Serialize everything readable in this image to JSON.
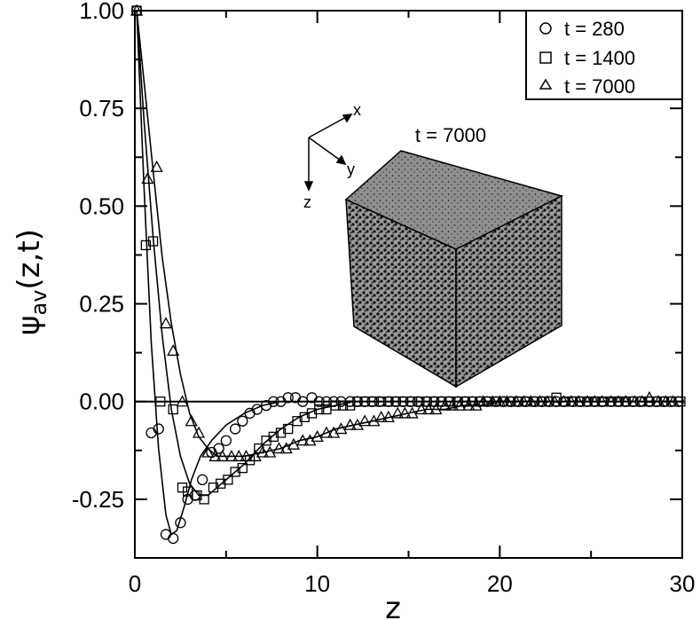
{
  "chart_data": {
    "type": "scatter",
    "xlabel": "z",
    "ylabel_main": "ψ",
    "ylabel_sub": "av",
    "ylabel_tail": "(z,t)",
    "xlim": [
      0,
      30
    ],
    "ylim": [
      -0.4,
      1.0
    ],
    "xticks": [
      0,
      10,
      20,
      30
    ],
    "xtick_labels": [
      "0",
      "10",
      "20",
      "30"
    ],
    "yticks": [
      1.0,
      0.75,
      0.5,
      0.25,
      0.0,
      -0.25
    ],
    "ytick_labels": [
      "1.00",
      "0.75",
      "0.50",
      "0.25",
      "0.00",
      "-0.25"
    ],
    "legend_position": "top-right",
    "series": [
      {
        "name": "t = 280",
        "marker": "circle",
        "points": [
          [
            0.1,
            1.0
          ],
          [
            0.9,
            -0.08
          ],
          [
            1.3,
            -0.07
          ],
          [
            1.7,
            -0.34
          ],
          [
            2.1,
            -0.35
          ],
          [
            2.5,
            -0.31
          ],
          [
            2.9,
            -0.25
          ],
          [
            3.3,
            -0.24
          ],
          [
            3.7,
            -0.2
          ],
          [
            4.2,
            -0.13
          ],
          [
            4.6,
            -0.12
          ],
          [
            5.0,
            -0.1
          ],
          [
            5.5,
            -0.07
          ],
          [
            5.9,
            -0.05
          ],
          [
            6.3,
            -0.03
          ],
          [
            6.7,
            -0.02
          ],
          [
            7.2,
            -0.01
          ],
          [
            7.6,
            0.0
          ],
          [
            8.0,
            0.0
          ],
          [
            8.4,
            0.01
          ],
          [
            8.8,
            0.01
          ],
          [
            9.2,
            0.0
          ],
          [
            9.7,
            0.01
          ],
          [
            10.1,
            0.0
          ],
          [
            10.5,
            0.0
          ],
          [
            10.9,
            0.0
          ],
          [
            11.3,
            0.0
          ],
          [
            11.8,
            0.0
          ],
          [
            12.2,
            0.0
          ],
          [
            12.6,
            0.0
          ],
          [
            13.0,
            0.0
          ],
          [
            13.4,
            0.0
          ],
          [
            13.9,
            0.0
          ],
          [
            14.3,
            0.0
          ],
          [
            14.7,
            0.0
          ],
          [
            15.1,
            0.0
          ],
          [
            15.5,
            0.0
          ],
          [
            16.0,
            0.0
          ],
          [
            16.4,
            0.0
          ],
          [
            16.8,
            0.0
          ],
          [
            17.2,
            0.0
          ],
          [
            17.7,
            0.0
          ],
          [
            18.1,
            0.0
          ],
          [
            18.5,
            0.0
          ],
          [
            18.9,
            0.0
          ],
          [
            19.3,
            0.0
          ],
          [
            19.8,
            0.0
          ],
          [
            20.2,
            0.0
          ],
          [
            20.6,
            0.0
          ],
          [
            21.0,
            0.0
          ],
          [
            21.4,
            0.0
          ],
          [
            21.9,
            0.0
          ],
          [
            22.3,
            0.0
          ],
          [
            22.7,
            0.0
          ],
          [
            23.1,
            0.0
          ],
          [
            23.5,
            0.0
          ],
          [
            24.0,
            0.0
          ],
          [
            24.4,
            0.0
          ],
          [
            24.8,
            0.0
          ],
          [
            25.2,
            0.0
          ],
          [
            25.6,
            0.0
          ],
          [
            26.1,
            0.0
          ],
          [
            26.5,
            0.0
          ],
          [
            26.9,
            0.0
          ],
          [
            27.3,
            0.0
          ],
          [
            27.7,
            0.0
          ],
          [
            28.2,
            0.0
          ],
          [
            28.6,
            0.0
          ],
          [
            29.0,
            0.0
          ],
          [
            29.4,
            0.0
          ],
          [
            29.8,
            0.0
          ]
        ]
      },
      {
        "name": "t = 1400",
        "marker": "square",
        "points": [
          [
            0.1,
            1.0
          ],
          [
            0.6,
            0.4
          ],
          [
            1.0,
            0.41
          ],
          [
            1.4,
            0.0
          ],
          [
            2.1,
            -0.02
          ],
          [
            2.6,
            -0.22
          ],
          [
            2.9,
            -0.23
          ],
          [
            3.4,
            -0.24
          ],
          [
            3.8,
            -0.25
          ],
          [
            4.3,
            -0.22
          ],
          [
            4.7,
            -0.21
          ],
          [
            5.1,
            -0.2
          ],
          [
            5.5,
            -0.18
          ],
          [
            5.9,
            -0.17
          ],
          [
            6.3,
            -0.15
          ],
          [
            6.8,
            -0.12
          ],
          [
            7.2,
            -0.1
          ],
          [
            7.6,
            -0.09
          ],
          [
            8.0,
            -0.08
          ],
          [
            8.4,
            -0.07
          ],
          [
            8.9,
            -0.05
          ],
          [
            9.3,
            -0.04
          ],
          [
            9.7,
            -0.03
          ],
          [
            10.1,
            -0.02
          ],
          [
            10.5,
            -0.02
          ],
          [
            11.0,
            -0.01
          ],
          [
            11.4,
            -0.01
          ],
          [
            11.8,
            -0.01
          ],
          [
            12.2,
            0.0
          ],
          [
            12.6,
            0.0
          ],
          [
            13.1,
            0.0
          ],
          [
            13.5,
            0.0
          ],
          [
            13.9,
            0.0
          ],
          [
            14.3,
            0.0
          ],
          [
            14.7,
            0.0
          ],
          [
            15.2,
            0.0
          ],
          [
            15.6,
            0.0
          ],
          [
            16.0,
            0.0
          ],
          [
            16.4,
            0.0
          ],
          [
            16.8,
            0.0
          ],
          [
            17.3,
            0.0
          ],
          [
            17.7,
            0.0
          ],
          [
            18.1,
            0.0
          ],
          [
            18.5,
            0.0
          ],
          [
            18.9,
            0.0
          ],
          [
            19.4,
            0.0
          ],
          [
            19.8,
            0.0
          ],
          [
            20.2,
            0.0
          ],
          [
            20.6,
            0.0
          ],
          [
            21.0,
            0.0
          ],
          [
            21.5,
            0.0
          ],
          [
            21.9,
            0.0
          ],
          [
            22.3,
            0.0
          ],
          [
            22.7,
            0.0
          ],
          [
            23.1,
            0.01
          ],
          [
            23.6,
            0.0
          ],
          [
            24.0,
            0.0
          ],
          [
            24.4,
            0.0
          ],
          [
            24.8,
            0.0
          ],
          [
            25.2,
            0.0
          ],
          [
            25.7,
            0.0
          ],
          [
            26.1,
            0.0
          ],
          [
            26.5,
            0.0
          ],
          [
            26.9,
            0.0
          ],
          [
            27.3,
            0.0
          ],
          [
            27.8,
            0.0
          ],
          [
            28.2,
            0.0
          ],
          [
            28.6,
            0.0
          ],
          [
            29.0,
            0.0
          ],
          [
            29.4,
            0.0
          ],
          [
            29.9,
            0.0
          ]
        ]
      },
      {
        "name": "t = 7000",
        "marker": "triangle",
        "points": [
          [
            0.1,
            1.0
          ],
          [
            0.7,
            0.57
          ],
          [
            1.2,
            0.6
          ],
          [
            1.7,
            0.2
          ],
          [
            2.1,
            0.13
          ],
          [
            2.6,
            0.0
          ],
          [
            3.1,
            -0.05
          ],
          [
            3.5,
            -0.08
          ],
          [
            4.0,
            -0.13
          ],
          [
            4.4,
            -0.14
          ],
          [
            4.8,
            -0.14
          ],
          [
            5.3,
            -0.14
          ],
          [
            5.7,
            -0.14
          ],
          [
            6.1,
            -0.14
          ],
          [
            6.6,
            -0.14
          ],
          [
            7.0,
            -0.13
          ],
          [
            7.4,
            -0.13
          ],
          [
            7.9,
            -0.12
          ],
          [
            8.3,
            -0.12
          ],
          [
            8.7,
            -0.11
          ],
          [
            9.2,
            -0.1
          ],
          [
            9.6,
            -0.1
          ],
          [
            10.0,
            -0.09
          ],
          [
            10.5,
            -0.08
          ],
          [
            10.9,
            -0.08
          ],
          [
            11.3,
            -0.07
          ],
          [
            11.8,
            -0.06
          ],
          [
            12.2,
            -0.06
          ],
          [
            12.6,
            -0.05
          ],
          [
            13.1,
            -0.05
          ],
          [
            13.5,
            -0.04
          ],
          [
            13.9,
            -0.04
          ],
          [
            14.4,
            -0.03
          ],
          [
            14.8,
            -0.03
          ],
          [
            15.2,
            -0.03
          ],
          [
            15.7,
            -0.02
          ],
          [
            16.1,
            -0.02
          ],
          [
            16.5,
            -0.02
          ],
          [
            17.0,
            -0.01
          ],
          [
            17.4,
            -0.01
          ],
          [
            17.8,
            -0.01
          ],
          [
            18.3,
            -0.01
          ],
          [
            18.7,
            -0.01
          ],
          [
            19.1,
            0.0
          ],
          [
            19.6,
            0.0
          ],
          [
            20.0,
            0.0
          ],
          [
            20.4,
            0.0
          ],
          [
            20.9,
            0.0
          ],
          [
            21.3,
            0.0
          ],
          [
            21.7,
            0.0
          ],
          [
            22.2,
            0.0
          ],
          [
            22.6,
            0.0
          ],
          [
            23.0,
            0.0
          ],
          [
            23.5,
            0.0
          ],
          [
            23.9,
            0.0
          ],
          [
            24.3,
            0.0
          ],
          [
            24.8,
            0.0
          ],
          [
            25.2,
            0.0
          ],
          [
            25.6,
            0.0
          ],
          [
            26.1,
            0.0
          ],
          [
            26.5,
            0.0
          ],
          [
            26.9,
            0.0
          ],
          [
            27.4,
            0.0
          ],
          [
            27.8,
            0.0
          ],
          [
            28.2,
            0.01
          ],
          [
            28.7,
            0.0
          ],
          [
            29.1,
            0.0
          ],
          [
            29.5,
            0.0
          ]
        ]
      }
    ],
    "fit_curves": [
      {
        "for": "t = 280",
        "points": [
          [
            0.1,
            1.0
          ],
          [
            0.5,
            0.55
          ],
          [
            0.9,
            0.15
          ],
          [
            1.3,
            -0.12
          ],
          [
            1.7,
            -0.29
          ],
          [
            2.0,
            -0.34
          ],
          [
            2.3,
            -0.33
          ],
          [
            2.7,
            -0.27
          ],
          [
            3.1,
            -0.2
          ],
          [
            3.6,
            -0.14
          ],
          [
            4.2,
            -0.1
          ],
          [
            5.0,
            -0.06
          ],
          [
            6.0,
            -0.03
          ],
          [
            7.0,
            -0.01
          ],
          [
            8.0,
            0.0
          ],
          [
            9.0,
            0.0
          ],
          [
            10.0,
            0.0
          ],
          [
            12.0,
            0.0
          ],
          [
            15.0,
            0.0
          ],
          [
            20.0,
            0.0
          ],
          [
            25.0,
            0.0
          ],
          [
            30.0,
            0.0
          ]
        ]
      },
      {
        "for": "t = 1400",
        "points": [
          [
            0.1,
            1.0
          ],
          [
            0.5,
            0.72
          ],
          [
            1.0,
            0.42
          ],
          [
            1.5,
            0.17
          ],
          [
            2.0,
            -0.02
          ],
          [
            2.5,
            -0.14
          ],
          [
            3.0,
            -0.21
          ],
          [
            3.5,
            -0.24
          ],
          [
            4.0,
            -0.24
          ],
          [
            4.5,
            -0.22
          ],
          [
            5.0,
            -0.2
          ],
          [
            6.0,
            -0.16
          ],
          [
            7.0,
            -0.11
          ],
          [
            8.0,
            -0.07
          ],
          [
            9.0,
            -0.04
          ],
          [
            10.0,
            -0.02
          ],
          [
            11.0,
            -0.01
          ],
          [
            12.0,
            0.0
          ],
          [
            14.0,
            0.0
          ],
          [
            17.0,
            0.0
          ],
          [
            20.0,
            0.0
          ],
          [
            25.0,
            0.0
          ],
          [
            30.0,
            0.0
          ]
        ]
      },
      {
        "for": "t = 7000",
        "points": [
          [
            0.1,
            1.0
          ],
          [
            0.5,
            0.82
          ],
          [
            1.0,
            0.59
          ],
          [
            1.5,
            0.37
          ],
          [
            2.0,
            0.2
          ],
          [
            2.5,
            0.07
          ],
          [
            3.0,
            -0.03
          ],
          [
            3.5,
            -0.09
          ],
          [
            4.0,
            -0.12
          ],
          [
            4.5,
            -0.14
          ],
          [
            5.0,
            -0.14
          ],
          [
            6.0,
            -0.14
          ],
          [
            7.0,
            -0.13
          ],
          [
            8.0,
            -0.12
          ],
          [
            9.0,
            -0.1
          ],
          [
            10.0,
            -0.09
          ],
          [
            11.0,
            -0.07
          ],
          [
            12.0,
            -0.06
          ],
          [
            13.0,
            -0.05
          ],
          [
            14.0,
            -0.04
          ],
          [
            15.0,
            -0.03
          ],
          [
            16.0,
            -0.02
          ],
          [
            17.0,
            -0.02
          ],
          [
            18.0,
            -0.01
          ],
          [
            19.0,
            -0.01
          ],
          [
            20.0,
            0.0
          ],
          [
            22.0,
            0.0
          ],
          [
            25.0,
            0.0
          ],
          [
            30.0,
            0.0
          ]
        ]
      }
    ],
    "inset": {
      "title": "t = 7000",
      "axis_x": "x",
      "axis_y": "y",
      "axis_z": "z"
    }
  }
}
